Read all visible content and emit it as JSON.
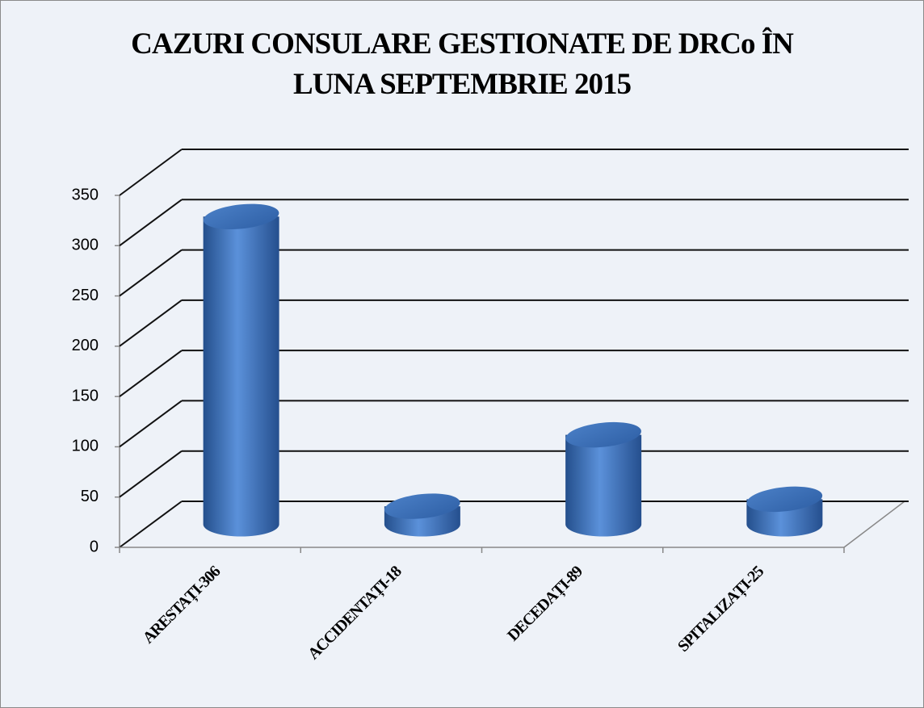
{
  "chart_data": {
    "type": "bar3d",
    "title": "CAZURI CONSULARE GESTIONATE DE DRCo ÎN LUNA SEPTEMBRIE 2015",
    "categories": [
      "ARESTAȚI-306",
      "ACCIDENTAȚI-18",
      "DECEDAȚI-89",
      "SPITALIZAȚI-25"
    ],
    "values": [
      306,
      18,
      89,
      25
    ],
    "color": "#3c6fb6",
    "ylim": [
      0,
      350
    ],
    "yticks": [
      0,
      50,
      100,
      150,
      200,
      250,
      300,
      350
    ],
    "grid": true
  }
}
